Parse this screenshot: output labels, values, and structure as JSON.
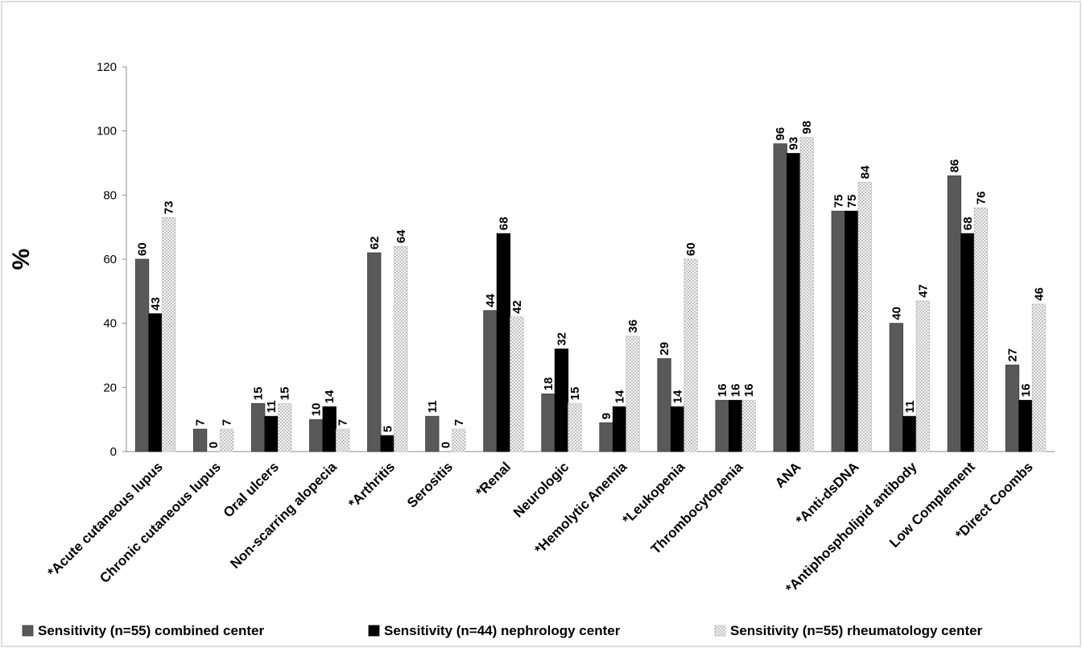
{
  "chart_data": {
    "type": "bar",
    "title": "",
    "xlabel": "",
    "ylabel": "%",
    "ylim": [
      0,
      120
    ],
    "yticks": [
      "0",
      "20",
      "40",
      "60",
      "80",
      "100",
      "120"
    ],
    "grid": false,
    "legend_position": "bottom",
    "categories": [
      "*Acute cutaneous lupus",
      "Chronic cutaneous lupus",
      "Oral ulcers",
      "Non-scarring alopecia",
      "*Arthritis",
      "Serositis",
      "*Renal",
      "Neurologic",
      "*Hemolytic Anemia",
      "*Leukopenia",
      "Thrombocytopenia",
      "ANA",
      "*Anti-dsDNA",
      "*Antiphospholipid antibody",
      "Low Complement",
      "*Direct Coombs"
    ],
    "series": [
      {
        "name": "Sensitivity (n=55) combined center",
        "color": "#595959",
        "values": [
          60,
          7,
          15,
          10,
          62,
          11,
          44,
          18,
          9,
          29,
          16,
          96,
          75,
          40,
          86,
          27
        ],
        "labels": [
          "60",
          "7",
          "15",
          "10",
          "62",
          "11",
          "44",
          "18",
          "9",
          "29",
          "16",
          "96",
          "75",
          "40",
          "86",
          "27"
        ]
      },
      {
        "name": "Sensitivity (n=44) nephrology center",
        "color": "#000000",
        "values": [
          43,
          0,
          11,
          14,
          5,
          0,
          68,
          32,
          14,
          14,
          16,
          93,
          75,
          11,
          68,
          16
        ],
        "labels": [
          "43",
          "0",
          "11",
          "14",
          "5",
          "0",
          "68",
          "32",
          "14",
          "14",
          "16",
          "93",
          "75",
          "11",
          "68",
          "16"
        ]
      },
      {
        "name": "Sensitivity (n=55) rheumatology center",
        "color": "#d9d9d9",
        "values": [
          73,
          7,
          15,
          7,
          64,
          7,
          42,
          15,
          36,
          60,
          16,
          98,
          84,
          47,
          76,
          46
        ],
        "labels": [
          "73",
          "7",
          "15",
          "7",
          "64",
          "7",
          "42",
          "15",
          "36",
          "60",
          "16",
          "98",
          "84",
          "47",
          "76",
          "46"
        ]
      }
    ]
  }
}
